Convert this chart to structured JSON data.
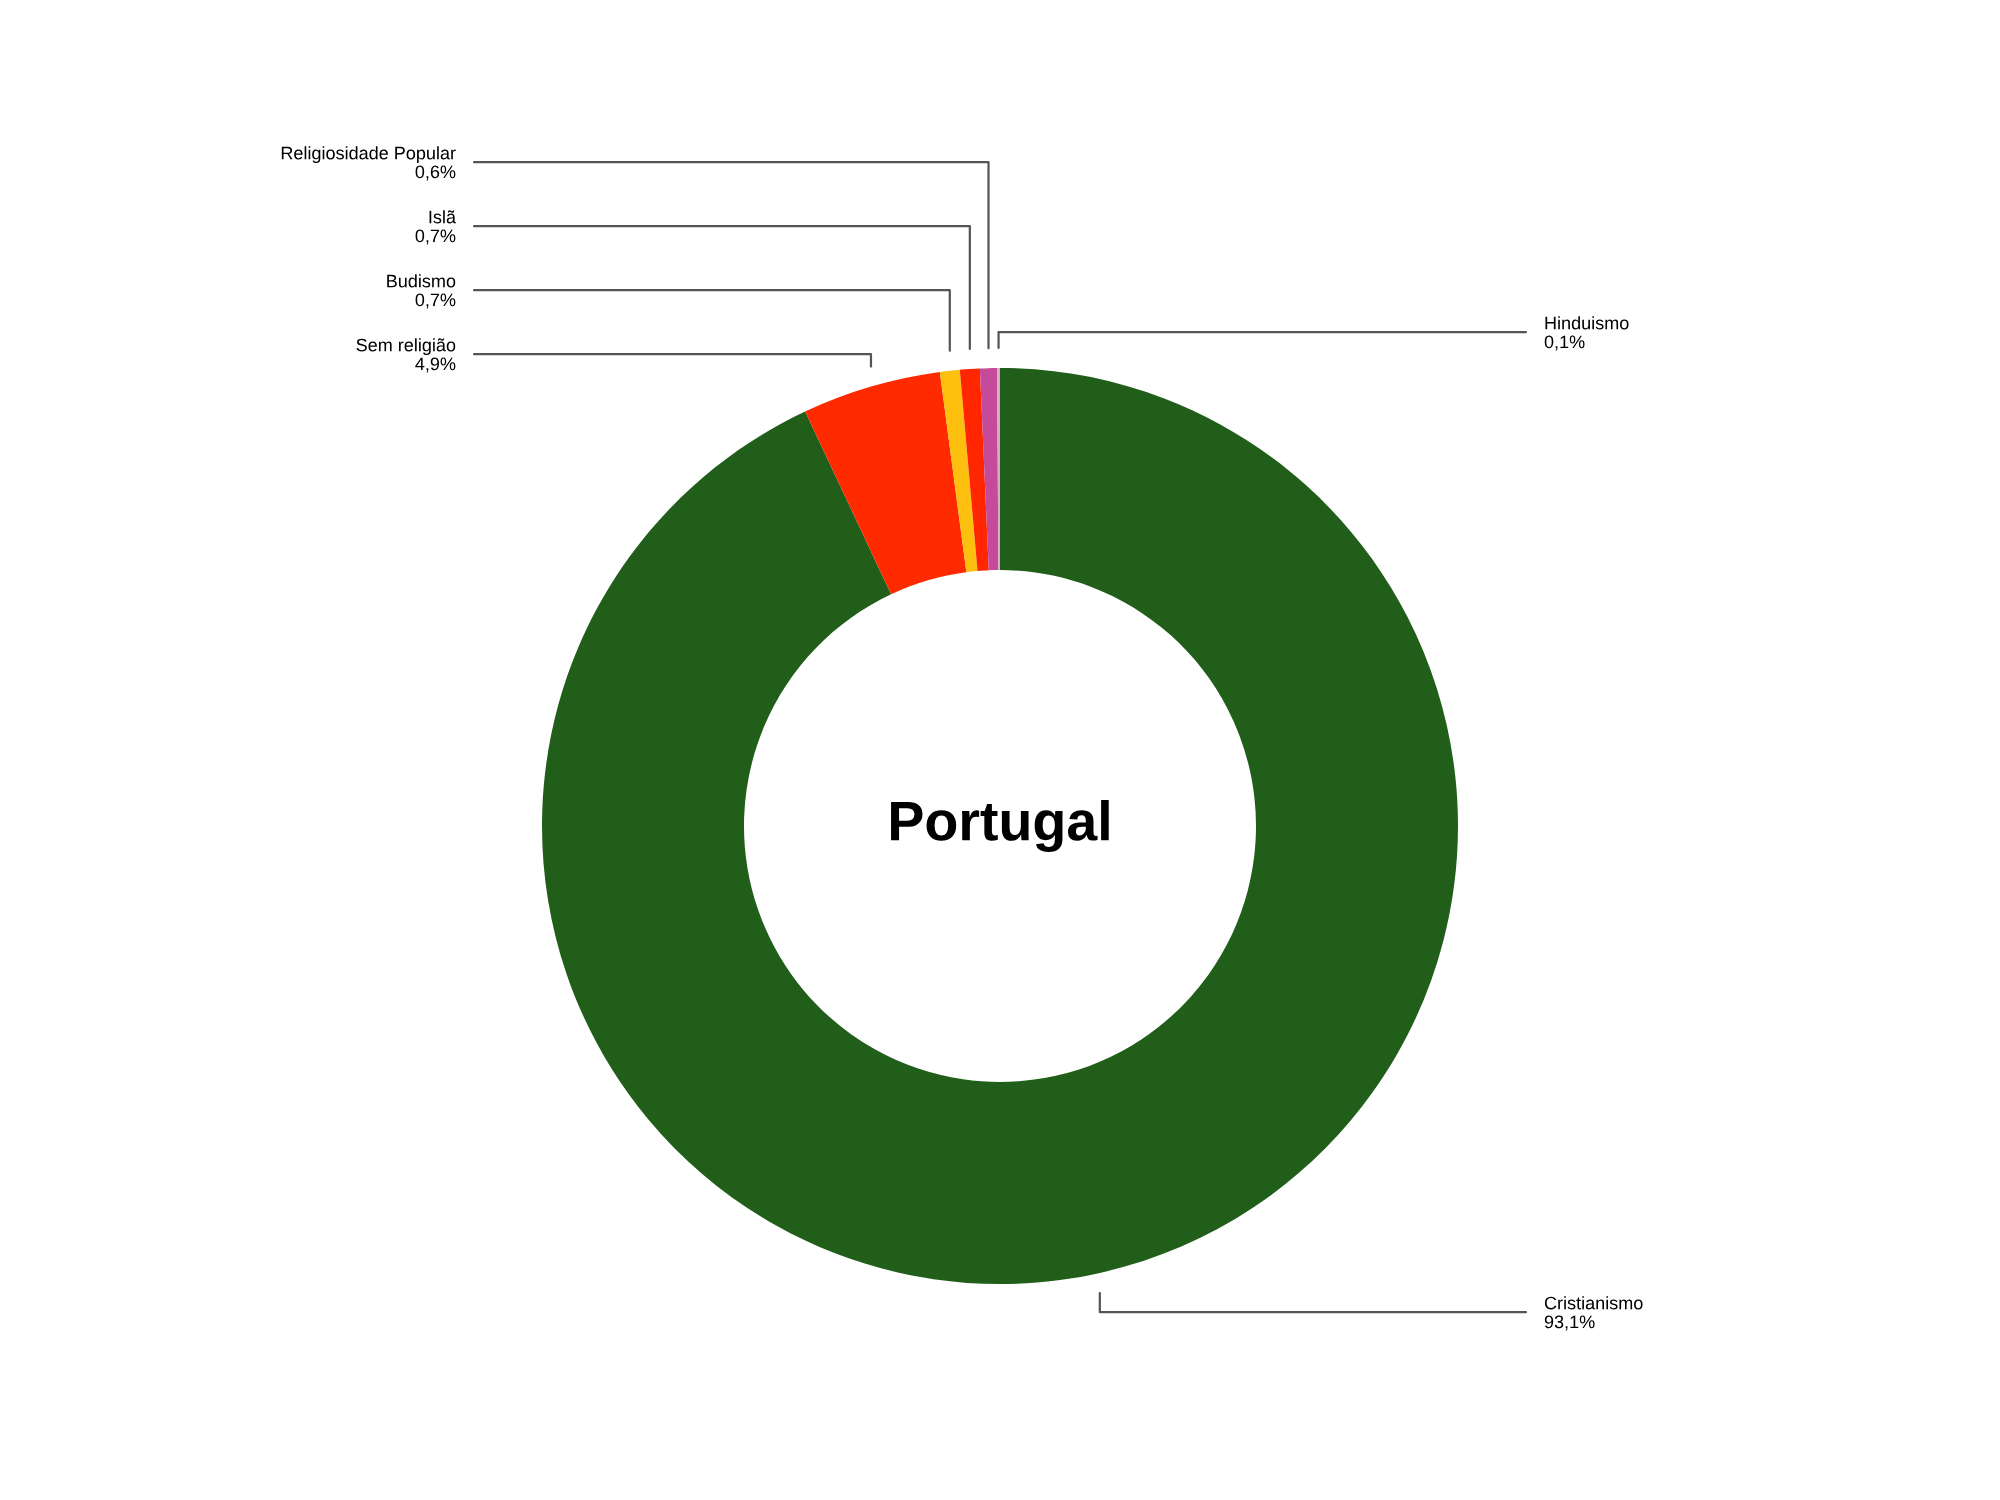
{
  "chart_data": {
    "type": "donut",
    "title": "Portugal",
    "categories": [
      "Cristianismo",
      "Sem religião",
      "Budismo",
      "Islã",
      "Religiosidade Popular",
      "Hinduismo"
    ],
    "values": [
      93.1,
      4.9,
      0.7,
      0.7,
      0.6,
      0.1
    ],
    "colors": [
      "#215e1a",
      "#ff2a00",
      "#fdc00f",
      "#ff2600",
      "#c64a9a",
      "#d8a8c8"
    ],
    "value_labels": [
      "93,1%",
      "4,9%",
      "0,7%",
      "0,7%",
      "0,6%",
      "0,1%"
    ]
  }
}
